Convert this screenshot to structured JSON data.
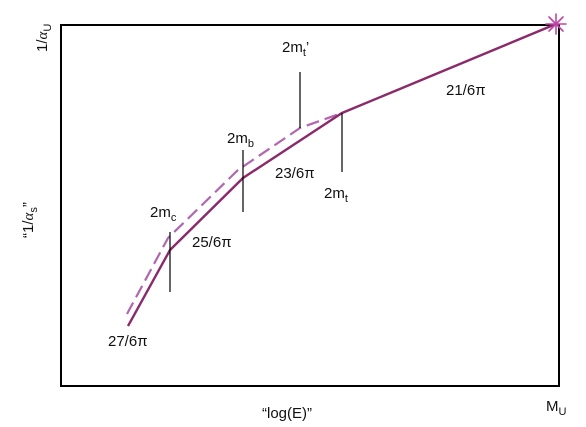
{
  "axes": {
    "x_label": "“log(E)”",
    "x_max_label": {
      "main": "M",
      "sub": "U"
    },
    "y_label": {
      "open_quote": "“1/",
      "alpha": "α",
      "sub": "s",
      "close_quote": "”"
    },
    "y_max_label": {
      "prefix": "1/",
      "alpha": "α",
      "sub": "U"
    }
  },
  "thresholds": {
    "mc": {
      "main": "2m",
      "sub": "c"
    },
    "mb": {
      "main": "2m",
      "sub": "b"
    },
    "mt": {
      "main": "2m",
      "sub": "t"
    },
    "mt_prime": {
      "main": "2m",
      "sub": "t",
      "suffix": "’"
    }
  },
  "slopes": {
    "s27": "27/6π",
    "s25": "25/6π",
    "s23": "23/6π",
    "s21": "21/6π"
  },
  "colors": {
    "solid_curve": "#8b2a6b",
    "dashed_curve": "#b066b0",
    "unification_star": "#c044a8",
    "frame": "#000000"
  }
}
